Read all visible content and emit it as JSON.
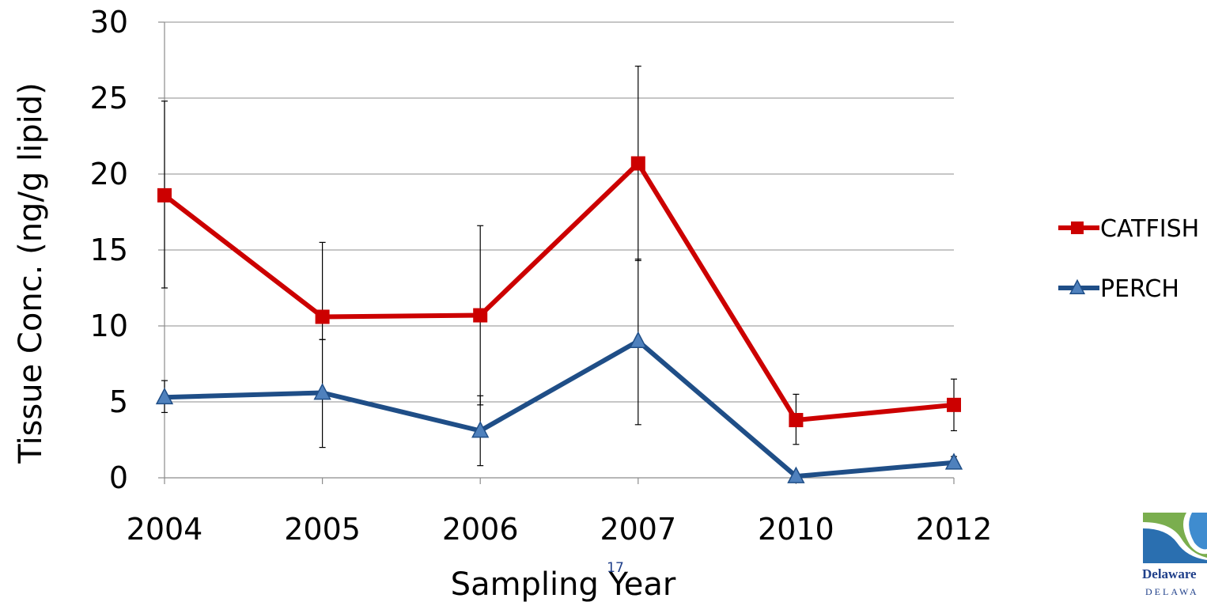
{
  "chart_data": {
    "type": "line",
    "xlabel": "Sampling Year",
    "ylabel": "Tissue Conc. (ng/g lipid)",
    "categories": [
      "2004",
      "2005",
      "2006",
      "2007",
      "2010",
      "2012"
    ],
    "ylim": [
      0,
      30
    ],
    "yticks": [
      0,
      5,
      10,
      15,
      20,
      25,
      30
    ],
    "grid": true,
    "legend": "right",
    "series": [
      {
        "name": "CATFISH",
        "color": "#cc0000",
        "marker": "square",
        "values": [
          18.6,
          10.6,
          10.7,
          20.7,
          3.8,
          4.8
        ],
        "err_low": [
          12.5,
          9.1,
          4.8,
          14.3,
          2.2,
          3.1
        ],
        "err_high": [
          24.8,
          15.5,
          16.6,
          27.1,
          5.5,
          6.5
        ]
      },
      {
        "name": "PERCH",
        "color": "#1f4e87",
        "marker": "triangle",
        "values": [
          5.3,
          5.6,
          3.1,
          9.0,
          0.1,
          1.0
        ],
        "err_low": [
          4.3,
          2.0,
          0.8,
          3.5,
          0.0,
          0.6
        ],
        "err_high": [
          6.4,
          9.1,
          5.4,
          14.4,
          0.3,
          1.4
        ]
      }
    ]
  },
  "page_number": "17",
  "logo": {
    "name": "Delaware",
    "sub": "DELAWA"
  }
}
